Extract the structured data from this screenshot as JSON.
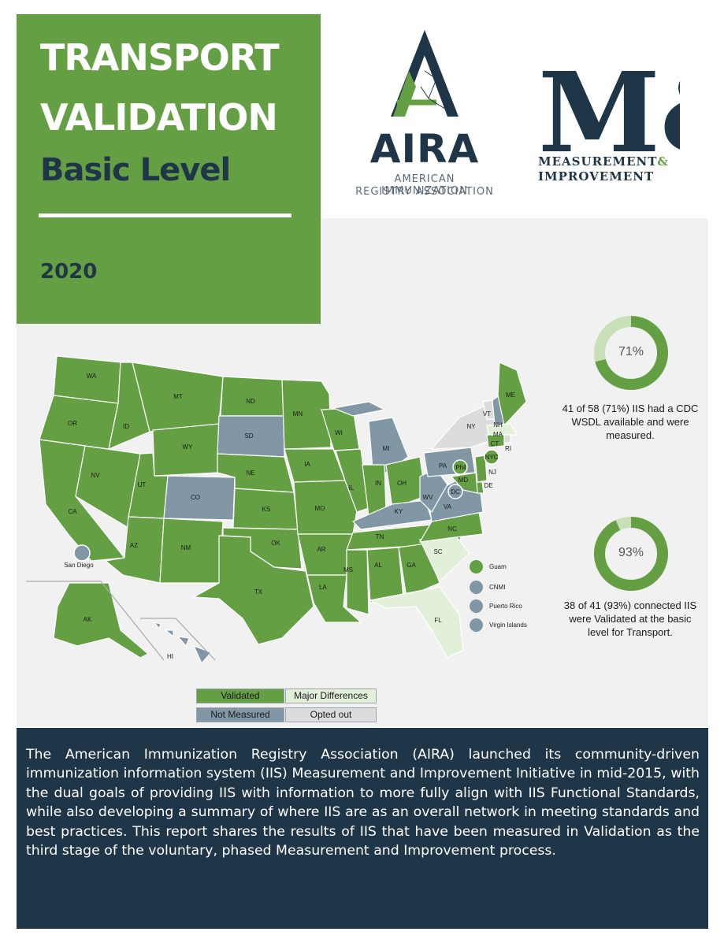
{
  "header": {
    "title_line1": "TRANSPORT",
    "title_line2": "VALIDATION",
    "subtitle": "Basic Level",
    "year": "2020"
  },
  "aira_logo": {
    "name": "AIRA",
    "tagline_line1": "AMERICAN IMMUNIZATION",
    "tagline_line2": "REGISTRY ASSOCIATION"
  },
  "mi_logo": {
    "mark": "M&I",
    "line1_text": "MEASUREMENT",
    "line1_amp": "&",
    "line2": "IMPROVEMENT"
  },
  "colors": {
    "validated": "#64a043",
    "major_differences": "#e2efd9",
    "not_measured": "#8197a6",
    "opted_out": "#dcdcdc",
    "navy": "#1f3548"
  },
  "map": {
    "labels": {
      "WA": "WA",
      "OR": "OR",
      "CA": "CA",
      "ID": "ID",
      "NV": "NV",
      "MT": "MT",
      "WY": "WY",
      "UT": "UT",
      "AZ": "AZ",
      "CO": "CO",
      "NM": "NM",
      "ND": "ND",
      "SD": "SD",
      "NE": "NE",
      "KS": "KS",
      "OK": "OK",
      "TX": "TX",
      "MN": "MN",
      "IA": "IA",
      "MO": "MO",
      "AR": "AR",
      "LA": "LA",
      "WI": "WI",
      "IL": "IL",
      "MS": "MS",
      "MI": "MI",
      "IN": "IN",
      "OH": "OH",
      "KY": "KY",
      "TN": "TN",
      "AL": "AL",
      "GA": "GA",
      "FL": "FL",
      "SC": "SC",
      "NC": "NC",
      "VA": "VA",
      "WV": "WV",
      "PA": "PA",
      "NY": "NY",
      "VT": "VT",
      "NH": "NH",
      "ME": "ME",
      "MA": "MA",
      "RI": "RI",
      "CT": "CT",
      "NJ": "NJ",
      "DE": "DE",
      "MD": "MD",
      "DC": "DC",
      "NYC": "NYC",
      "Phil": "Phil",
      "AK": "AK",
      "HI": "HI",
      "SanDiego": "San Diego"
    },
    "territories": [
      {
        "name": "Guam",
        "status": "validated"
      },
      {
        "name": "CNMI",
        "status": "not_measured"
      },
      {
        "name": "Puerto Rico",
        "status": "not_measured"
      },
      {
        "name": "Virgin Islands",
        "status": "not_measured"
      }
    ]
  },
  "legend": {
    "validated": "Validated",
    "major_differences": "Major Differences",
    "not_measured": "Not Measured",
    "opted_out": "Opted out"
  },
  "stats": [
    {
      "percent_label": "71%",
      "percent": 71,
      "text_line1": "41 of 58 (71%) IIS had a CDC",
      "text_line2": "WSDL available and were",
      "text_line3": "measured."
    },
    {
      "percent_label": "93%",
      "percent": 93,
      "text_line1": "38 of 41 (93%) connected IIS",
      "text_line2": "were Validated at the basic",
      "text_line3": "level for Transport."
    }
  ],
  "footer": {
    "text": "The American Immunization Registry Association (AIRA) launched its community-driven immunization information system (IIS) Measurement and Improvement Initiative in mid-2015, with the dual goals of providing IIS with information to more fully align with IIS Functional Standards, while also developing a summary of where IIS are as an overall network in meeting standards and best practices. This report shares the results of IIS that have been measured in Validation as the third stage of the voluntary, phased Measurement and Improvement process."
  }
}
